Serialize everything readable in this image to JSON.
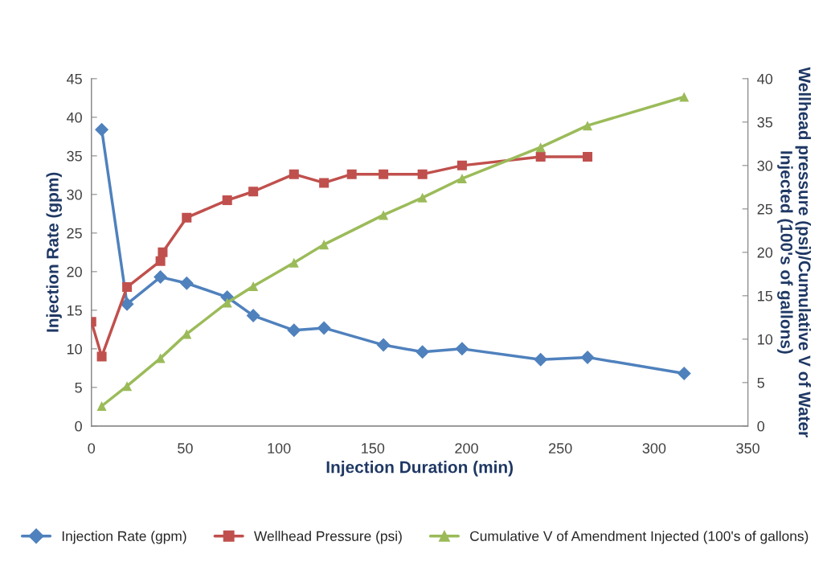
{
  "chart_data": {
    "type": "line",
    "xlabel": "Injection Duration (min)",
    "ylabel": "Injection Rate (gpm)",
    "y2label": "Wellhead pressure (psi)/Cumulative V of Water\nInjected (100's of gallons)",
    "xlim": [
      0,
      350
    ],
    "xticks": [
      0,
      50,
      100,
      150,
      200,
      250,
      300,
      350
    ],
    "ylim": [
      0,
      45
    ],
    "yticks": [
      0,
      5,
      10,
      15,
      20,
      25,
      30,
      35,
      40,
      45
    ],
    "y2lim": [
      0,
      40
    ],
    "y2ticks": [
      0,
      5,
      10,
      15,
      20,
      25,
      30,
      35,
      40
    ],
    "grid": false,
    "legend": "bottom",
    "line_style": "solid",
    "series": [
      {
        "name": "Injection Rate (gpm)",
        "color": "#4f81bd",
        "marker": "diamond",
        "x": [
          5.5,
          19,
          36.8,
          50.8,
          72.4,
          86.3,
          108,
          124,
          155.7,
          176.5,
          197.6,
          239.5,
          264.5,
          316
        ],
        "values": [
          38.4,
          15.8,
          19.3,
          18.5,
          16.7,
          14.3,
          12.4,
          12.7,
          10.5,
          9.6,
          10,
          8.6,
          8.9,
          6.8
        ]
      },
      {
        "name": "Wellhead Pressure (psi)",
        "color": "#c0504d",
        "marker": "square",
        "axis": "y2",
        "x": [
          0,
          5.5,
          19,
          36.8,
          38,
          50.8,
          72.4,
          86.3,
          108,
          124,
          138.8,
          155.7,
          176.5,
          197.6,
          239.5,
          264.5
        ],
        "values": [
          12,
          8,
          16,
          19,
          20,
          24,
          26,
          27,
          29,
          28,
          29,
          29,
          29,
          30,
          31,
          31
        ]
      },
      {
        "name": "Cumulative V of Amendment Injected (100's of gallons)",
        "color": "#9bbb59",
        "marker": "triangle",
        "axis": "y2",
        "x": [
          5.5,
          19,
          36.8,
          50.8,
          72.4,
          86.3,
          108,
          124,
          155.7,
          176.5,
          197.6,
          239.5,
          264.5,
          316
        ],
        "values": [
          2.3,
          4.6,
          7.8,
          10.6,
          14.2,
          16.1,
          18.8,
          20.9,
          24.3,
          26.3,
          28.5,
          32.1,
          34.6,
          37.9
        ]
      }
    ]
  }
}
